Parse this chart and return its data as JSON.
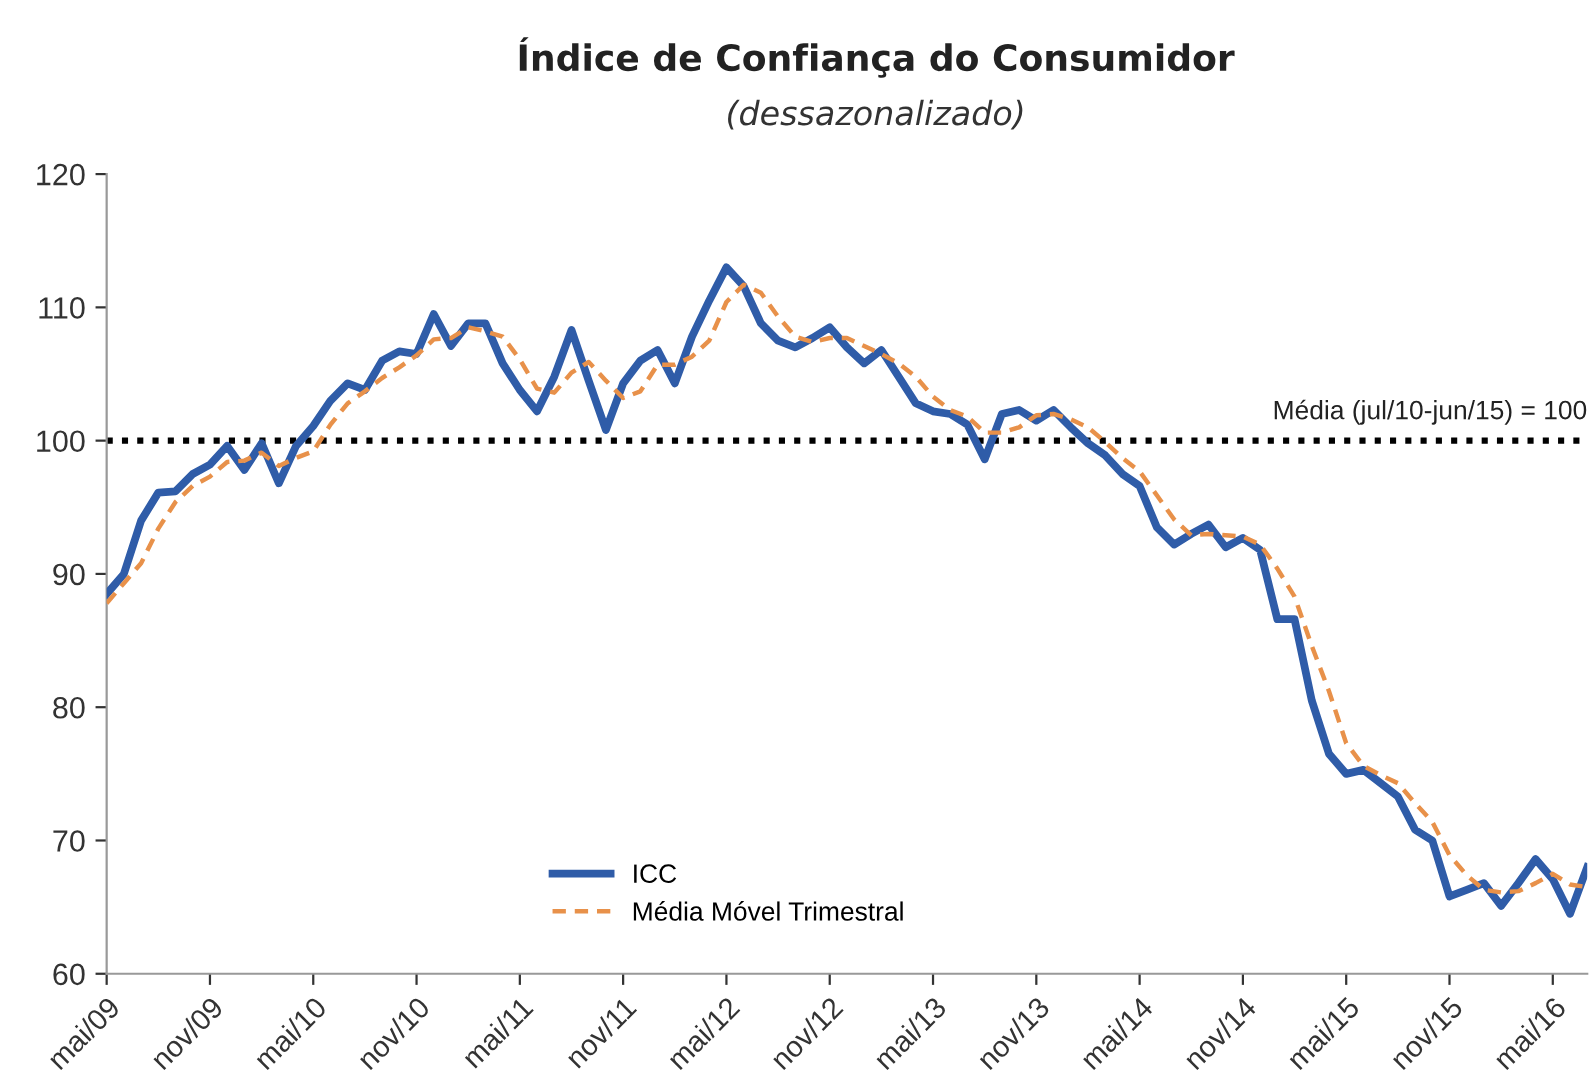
{
  "chart_data": {
    "type": "line",
    "title": "Índice de Confiança do Consumidor",
    "subtitle": "(dessazonalizado)",
    "x": [
      "2009-05",
      "2009-06",
      "2009-07",
      "2009-08",
      "2009-09",
      "2009-10",
      "2009-11",
      "2009-12",
      "2010-01",
      "2010-02",
      "2010-03",
      "2010-04",
      "2010-05",
      "2010-06",
      "2010-07",
      "2010-08",
      "2010-09",
      "2010-10",
      "2010-11",
      "2010-12",
      "2011-01",
      "2011-02",
      "2011-03",
      "2011-04",
      "2011-05",
      "2011-06",
      "2011-07",
      "2011-08",
      "2011-09",
      "2011-10",
      "2011-11",
      "2011-12",
      "2012-01",
      "2012-02",
      "2012-03",
      "2012-04",
      "2012-05",
      "2012-06",
      "2012-07",
      "2012-08",
      "2012-09",
      "2012-10",
      "2012-11",
      "2012-12",
      "2013-01",
      "2013-02",
      "2013-03",
      "2013-04",
      "2013-05",
      "2013-06",
      "2013-07",
      "2013-08",
      "2013-09",
      "2013-10",
      "2013-11",
      "2013-12",
      "2014-01",
      "2014-02",
      "2014-03",
      "2014-04",
      "2014-05",
      "2014-06",
      "2014-07",
      "2014-08",
      "2014-09",
      "2014-10",
      "2014-11",
      "2014-12",
      "2015-01",
      "2015-02",
      "2015-03",
      "2015-04",
      "2015-05",
      "2015-06",
      "2015-07",
      "2015-08",
      "2015-09",
      "2015-10",
      "2015-11",
      "2015-12",
      "2016-01",
      "2016-02",
      "2016-03",
      "2016-04",
      "2016-05",
      "2016-06",
      "2016-07"
    ],
    "series": [
      {
        "name": "ICC",
        "color": "#2f5ca8",
        "line_style": "solid",
        "values": [
          88.5,
          90,
          94,
          96.1,
          96.2,
          97.5,
          98.2,
          99.6,
          97.8,
          99.8,
          96.8,
          99.6,
          101.1,
          103,
          104.3,
          103.8,
          106,
          106.7,
          106.5,
          109.5,
          107.1,
          108.8,
          108.8,
          105.8,
          103.8,
          102.2,
          104.8,
          108.3,
          104.5,
          100.8,
          104.3,
          106,
          106.8,
          104.3,
          107.8,
          110.5,
          113,
          111.6,
          108.8,
          107.5,
          107,
          107.7,
          108.5,
          107,
          105.8,
          106.8,
          104.8,
          102.8,
          102.2,
          102,
          101.2,
          98.6,
          102,
          102.3,
          101.5,
          102.3,
          101,
          99.8,
          98.9,
          97.5,
          96.6,
          93.5,
          92.2,
          93,
          93.7,
          92,
          92.7,
          91.8,
          86.6,
          86.6,
          80.5,
          76.5,
          75,
          75.3,
          74.3,
          73.3,
          70.8,
          70,
          65.8,
          66.3,
          66.8,
          65.1,
          66.8,
          68.6,
          67.1,
          64.5,
          68
        ]
      },
      {
        "name": "Média Móvel Trimestral",
        "color": "#e8914a",
        "line_style": "dashed",
        "values": [
          87.8,
          89.3,
          90.8,
          93.4,
          95.4,
          96.6,
          97.3,
          98.4,
          98.5,
          99.1,
          98.1,
          98.7,
          99.2,
          101.2,
          102.8,
          103.7,
          104.7,
          105.5,
          106.4,
          107.6,
          107.7,
          108.5,
          108.2,
          107.8,
          106.1,
          103.9,
          103.6,
          105.1,
          105.9,
          104.5,
          103.2,
          103.7,
          105.7,
          105.7,
          106.3,
          107.5,
          110.4,
          111.7,
          111.1,
          109.3,
          107.8,
          107.4,
          107.7,
          107.7,
          107.1,
          106.5,
          105.8,
          104.8,
          103.3,
          102.3,
          101.8,
          100.6,
          100.6,
          101,
          101.9,
          102,
          101.6,
          101,
          99.9,
          98.7,
          97.7,
          95.9,
          94.1,
          92.9,
          93,
          92.9,
          92.8,
          92.2,
          90.4,
          88.3,
          84.6,
          81.2,
          77.3,
          75.6,
          74.9,
          74.3,
          72.8,
          71.4,
          68.9,
          67.4,
          66.3,
          66.1,
          66.2,
          66.8,
          67.5,
          66.7,
          66.5
        ]
      }
    ],
    "xlim": [
      "2009-05",
      "2016-07"
    ],
    "xticks": [
      {
        "value": "2009-05",
        "label": "mai/09"
      },
      {
        "value": "2009-11",
        "label": "nov/09"
      },
      {
        "value": "2010-05",
        "label": "mai/10"
      },
      {
        "value": "2010-11",
        "label": "nov/10"
      },
      {
        "value": "2011-05",
        "label": "mai/11"
      },
      {
        "value": "2011-11",
        "label": "nov/11"
      },
      {
        "value": "2012-05",
        "label": "mai/12"
      },
      {
        "value": "2012-11",
        "label": "nov/12"
      },
      {
        "value": "2013-05",
        "label": "mai/13"
      },
      {
        "value": "2013-11",
        "label": "nov/13"
      },
      {
        "value": "2014-05",
        "label": "mai/14"
      },
      {
        "value": "2014-11",
        "label": "nov/14"
      },
      {
        "value": "2015-05",
        "label": "mai/15"
      },
      {
        "value": "2015-11",
        "label": "nov/15"
      },
      {
        "value": "2016-05",
        "label": "mai/16"
      }
    ],
    "ylim": [
      60,
      120
    ],
    "yticks": [
      60,
      70,
      80,
      90,
      100,
      110,
      120
    ],
    "ref_lines": [
      {
        "axis": "y",
        "value": 100,
        "label": "Média (jul/10-jun/15) = 100",
        "color": "#000000",
        "line_style": "dotted"
      }
    ],
    "grid": false,
    "legend": "bottom"
  }
}
